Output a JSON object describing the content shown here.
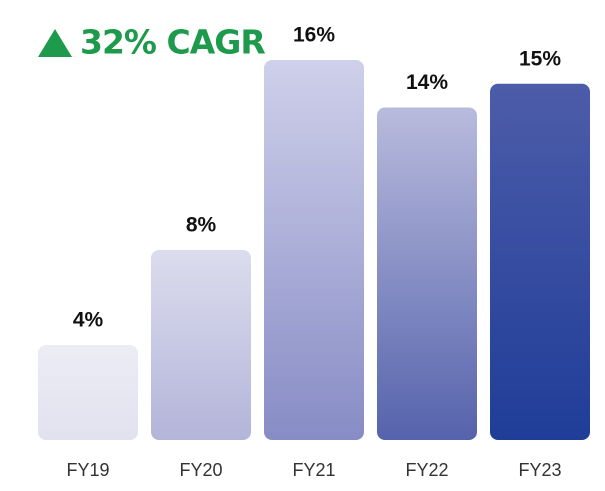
{
  "chart_data": {
    "type": "bar",
    "annotation": "32% CAGR",
    "categories": [
      "FY19",
      "FY20",
      "FY21",
      "FY22",
      "FY23"
    ],
    "values": [
      4,
      8,
      16,
      14,
      15
    ],
    "value_labels": [
      "4%",
      "8%",
      "16%",
      "14%",
      "15%"
    ],
    "colors": [
      [
        "#ececf5",
        "#e2e2ef"
      ],
      [
        "#dcdcee",
        "#b3b5d9"
      ],
      [
        "#cfd0ea",
        "#878cc5"
      ],
      [
        "#b9bbdd",
        "#5563ac"
      ],
      [
        "#4d5ca9",
        "#1f3d98"
      ]
    ]
  }
}
